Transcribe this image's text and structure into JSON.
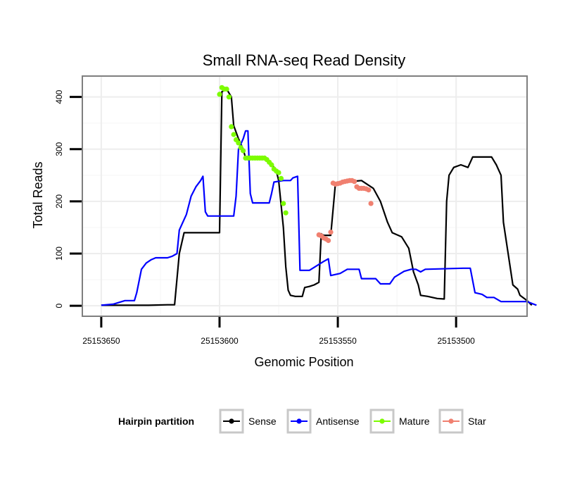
{
  "chart_data": {
    "type": "line",
    "title": "Small RNA-seq Read Density",
    "xlabel": "Genomic Position",
    "ylabel": "Total Reads",
    "xlim": [
      25153658,
      25153470
    ],
    "ylim": [
      -20,
      440
    ],
    "x_ticks": [
      25153650,
      25153600,
      25153550,
      25153500
    ],
    "x_tick_labels": [
      "25153650",
      "25153600",
      "25153550",
      "25153500"
    ],
    "y_ticks": [
      0,
      100,
      200,
      300,
      400
    ],
    "y_tick_labels": [
      "0",
      "100",
      "200",
      "300",
      "400"
    ],
    "grid": true,
    "legend": {
      "title": "Hairpin partition",
      "position": "bottom",
      "entries": [
        {
          "name": "Sense",
          "color": "#000000"
        },
        {
          "name": "Antisense",
          "color": "#0000ff"
        },
        {
          "name": "Mature",
          "color": "#7cfc00"
        },
        {
          "name": "Star",
          "color": "#f08070"
        }
      ]
    },
    "series": [
      {
        "name": "Sense",
        "color": "#000000",
        "style": "line",
        "points": [
          [
            25153650,
            1
          ],
          [
            25153630,
            1
          ],
          [
            25153622,
            2
          ],
          [
            25153619,
            2
          ],
          [
            25153617,
            100
          ],
          [
            25153615,
            140
          ],
          [
            25153600,
            140
          ],
          [
            25153599,
            410
          ],
          [
            25153597,
            415
          ],
          [
            25153595,
            400
          ],
          [
            25153594,
            345
          ],
          [
            25153592,
            320
          ],
          [
            25153590,
            300
          ],
          [
            25153589,
            283
          ],
          [
            25153581,
            283
          ],
          [
            25153578,
            272
          ],
          [
            25153576,
            258
          ],
          [
            25153575,
            240
          ],
          [
            25153573,
            150
          ],
          [
            25153572,
            75
          ],
          [
            25153571,
            30
          ],
          [
            25153570,
            20
          ],
          [
            25153568,
            18
          ],
          [
            25153565,
            18
          ],
          [
            25153564,
            35
          ],
          [
            25153562,
            37
          ],
          [
            25153560,
            40
          ],
          [
            25153558,
            45
          ],
          [
            25153557,
            138
          ],
          [
            25153556,
            135
          ],
          [
            25153553,
            135
          ],
          [
            25153551,
            235
          ],
          [
            25153540,
            240
          ],
          [
            25153535,
            225
          ],
          [
            25153532,
            200
          ],
          [
            25153529,
            160
          ],
          [
            25153527,
            140
          ],
          [
            25153523,
            132
          ],
          [
            25153520,
            110
          ],
          [
            25153518,
            65
          ],
          [
            25153516,
            40
          ],
          [
            25153515,
            20
          ],
          [
            25153512,
            18
          ],
          [
            25153508,
            14
          ],
          [
            25153505,
            13
          ],
          [
            25153504,
            200
          ],
          [
            25153503,
            250
          ],
          [
            25153501,
            265
          ],
          [
            25153498,
            270
          ],
          [
            25153495,
            265
          ],
          [
            25153493,
            285
          ],
          [
            25153485,
            285
          ],
          [
            25153483,
            270
          ],
          [
            25153481,
            250
          ],
          [
            25153480,
            160
          ],
          [
            25153478,
            100
          ],
          [
            25153476,
            40
          ],
          [
            25153474,
            32
          ],
          [
            25153473,
            20
          ],
          [
            25153470,
            10
          ],
          [
            25153468,
            1
          ]
        ]
      },
      {
        "name": "Antisense",
        "color": "#0000ff",
        "style": "line",
        "points": [
          [
            25153650,
            1
          ],
          [
            25153645,
            3
          ],
          [
            25153640,
            10
          ],
          [
            25153636,
            10
          ],
          [
            25153635,
            25
          ],
          [
            25153633,
            70
          ],
          [
            25153631,
            82
          ],
          [
            25153629,
            88
          ],
          [
            25153627,
            92
          ],
          [
            25153622,
            92
          ],
          [
            25153620,
            95
          ],
          [
            25153618,
            100
          ],
          [
            25153617,
            145
          ],
          [
            25153614,
            175
          ],
          [
            25153612,
            210
          ],
          [
            25153610,
            228
          ],
          [
            25153608,
            240
          ],
          [
            25153607,
            248
          ],
          [
            25153606,
            180
          ],
          [
            25153605,
            172
          ],
          [
            25153594,
            172
          ],
          [
            25153593,
            210
          ],
          [
            25153592,
            300
          ],
          [
            25153590,
            320
          ],
          [
            25153589,
            335
          ],
          [
            25153588,
            335
          ],
          [
            25153587,
            215
          ],
          [
            25153586,
            197
          ],
          [
            25153579,
            197
          ],
          [
            25153578,
            215
          ],
          [
            25153577,
            237
          ],
          [
            25153573,
            240
          ],
          [
            25153570,
            240
          ],
          [
            25153569,
            245
          ],
          [
            25153567,
            248
          ],
          [
            25153566,
            68
          ],
          [
            25153562,
            68
          ],
          [
            25153556,
            85
          ],
          [
            25153554,
            90
          ],
          [
            25153553,
            58
          ],
          [
            25153549,
            62
          ],
          [
            25153546,
            70
          ],
          [
            25153541,
            70
          ],
          [
            25153540,
            52
          ],
          [
            25153534,
            52
          ],
          [
            25153532,
            42
          ],
          [
            25153528,
            42
          ],
          [
            25153526,
            55
          ],
          [
            25153522,
            66
          ],
          [
            25153519,
            70
          ],
          [
            25153517,
            70
          ],
          [
            25153515,
            65
          ],
          [
            25153513,
            70
          ],
          [
            25153497,
            72
          ],
          [
            25153494,
            72
          ],
          [
            25153492,
            25
          ],
          [
            25153489,
            22
          ],
          [
            25153487,
            16
          ],
          [
            25153484,
            16
          ],
          [
            25153481,
            8
          ],
          [
            25153470,
            8
          ],
          [
            25153466,
            1
          ]
        ]
      },
      {
        "name": "Mature",
        "color": "#7cfc00",
        "style": "points",
        "points": [
          [
            25153600,
            405
          ],
          [
            25153599,
            418
          ],
          [
            25153598,
            415
          ],
          [
            25153597,
            415
          ],
          [
            25153596,
            400
          ],
          [
            25153595,
            343
          ],
          [
            25153594,
            328
          ],
          [
            25153593,
            318
          ],
          [
            25153592,
            312
          ],
          [
            25153591,
            303
          ],
          [
            25153590,
            297
          ],
          [
            25153589,
            283
          ],
          [
            25153588,
            283
          ],
          [
            25153587,
            283
          ],
          [
            25153586,
            283
          ],
          [
            25153585,
            283
          ],
          [
            25153584,
            283
          ],
          [
            25153583,
            283
          ],
          [
            25153582,
            283
          ],
          [
            25153581,
            283
          ],
          [
            25153580,
            280
          ],
          [
            25153579,
            275
          ],
          [
            25153578,
            270
          ],
          [
            25153577,
            262
          ],
          [
            25153576,
            258
          ],
          [
            25153575,
            255
          ],
          [
            25153574,
            244
          ],
          [
            25153573,
            196
          ],
          [
            25153572,
            178
          ]
        ]
      },
      {
        "name": "Star",
        "color": "#f08070",
        "style": "points",
        "points": [
          [
            25153558,
            136
          ],
          [
            25153557,
            134
          ],
          [
            25153556,
            130
          ],
          [
            25153555,
            128
          ],
          [
            25153554,
            125
          ],
          [
            25153553,
            141
          ],
          [
            25153552,
            235
          ],
          [
            25153551,
            233
          ],
          [
            25153550,
            234
          ],
          [
            25153549,
            235
          ],
          [
            25153548,
            237
          ],
          [
            25153547,
            238
          ],
          [
            25153546,
            239
          ],
          [
            25153545,
            240
          ],
          [
            25153544,
            240
          ],
          [
            25153543,
            238
          ],
          [
            25153542,
            228
          ],
          [
            25153541,
            225
          ],
          [
            25153540,
            225
          ],
          [
            25153539,
            225
          ],
          [
            25153538,
            224
          ],
          [
            25153537,
            222
          ],
          [
            25153536,
            196
          ]
        ]
      }
    ]
  }
}
